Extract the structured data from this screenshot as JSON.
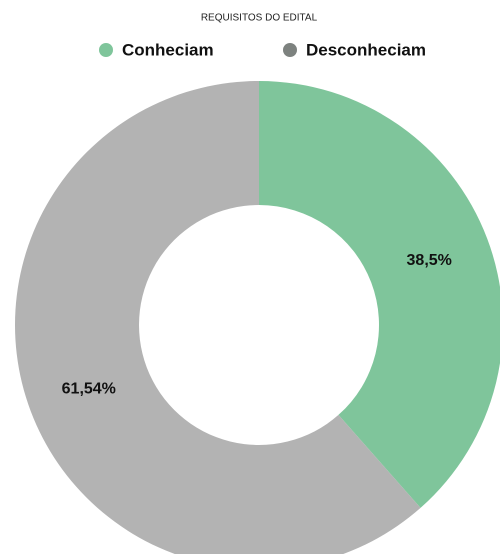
{
  "chart_data": {
    "type": "donut",
    "title": "REQUISITOS DO EDITAL",
    "categories": [
      "Conheciam",
      "Desconheciam"
    ],
    "values": [
      38.5,
      61.54
    ],
    "value_labels": [
      "38,5%",
      "61,54%"
    ],
    "colors": [
      "#7fc59b",
      "#b3b3b3"
    ],
    "legend_colors": [
      "#7fc59b",
      "#7d827f"
    ]
  }
}
